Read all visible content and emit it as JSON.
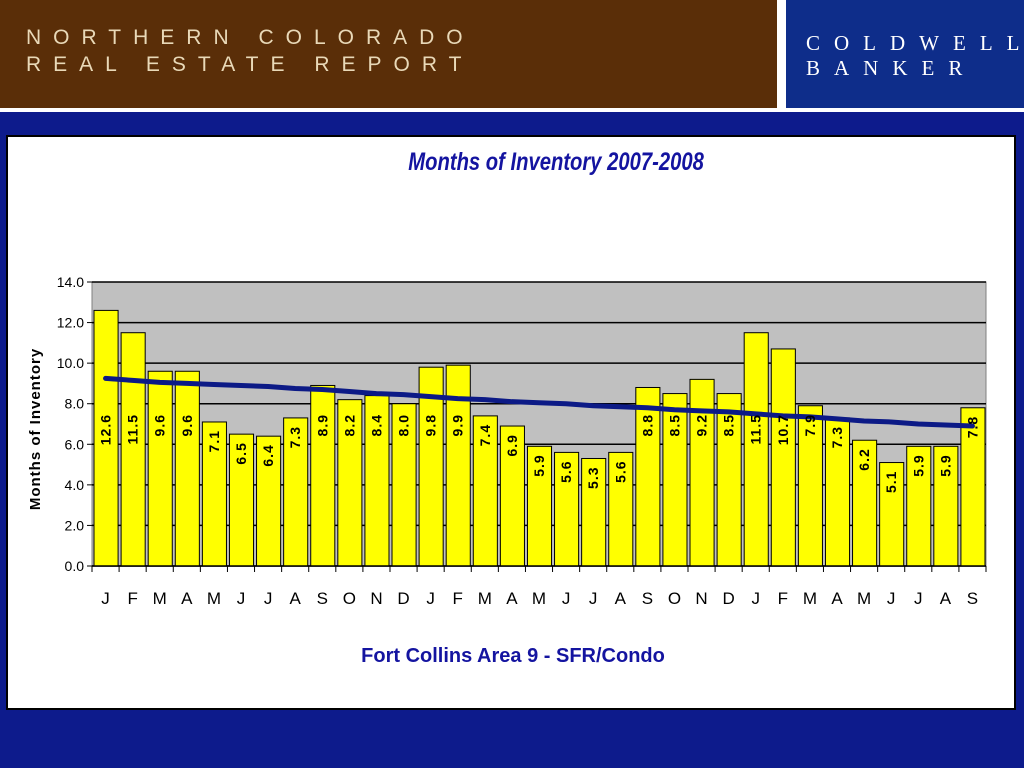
{
  "header": {
    "report_line1": "NORTHERN COLORADO",
    "report_line2": "REAL ESTATE REPORT",
    "brand_line1": "COLDWELL",
    "brand_line2": "BANKER"
  },
  "colors": {
    "bar_fill": "#ffff00",
    "bar_stroke": "#000000",
    "trend_line": "#0c1a86",
    "plot_bg": "#c0c0c0",
    "title": "#1414a0"
  },
  "chart_data": {
    "type": "bar",
    "title": "Months of Inventory  2007-2008",
    "ylabel": "Months of Inventory",
    "xlabel": "",
    "ylim": [
      0,
      14
    ],
    "yticks": [
      "0.0",
      "2.0",
      "4.0",
      "6.0",
      "8.0",
      "10.0",
      "12.0",
      "14.0"
    ],
    "grid": true,
    "categories": [
      "J",
      "F",
      "M",
      "A",
      "M",
      "J",
      "J",
      "A",
      "S",
      "O",
      "N",
      "D",
      "J",
      "F",
      "M",
      "A",
      "M",
      "J",
      "J",
      "A",
      "S",
      "O",
      "N",
      "D",
      "J",
      "F",
      "M",
      "A",
      "M",
      "J",
      "J",
      "A",
      "S"
    ],
    "series": [
      {
        "type": "bar",
        "values": [
          12.6,
          11.5,
          9.6,
          9.6,
          7.1,
          6.5,
          6.4,
          7.3,
          8.9,
          8.2,
          8.4,
          8.0,
          9.8,
          9.9,
          7.4,
          6.9,
          5.9,
          5.6,
          5.3,
          5.6,
          8.8,
          8.5,
          9.2,
          8.5,
          11.5,
          10.7,
          7.9,
          7.3,
          6.2,
          5.1,
          5.9,
          5.9,
          7.8
        ],
        "labels": [
          "12.6",
          "11.5",
          "9.6",
          "9.6",
          "7.1",
          "6.5",
          "6.4",
          "7.3",
          "8.9",
          "8.2",
          "8.4",
          "8.0",
          "9.8",
          "9.9",
          "7.4",
          "6.9",
          "5.9",
          "5.6",
          "5.3",
          "5.6",
          "8.8",
          "8.5",
          "9.2",
          "8.5",
          "11.5",
          "10.7",
          "7.9",
          "7.3",
          "6.2",
          "5.1",
          "5.9",
          "5.9",
          "7.8"
        ]
      },
      {
        "type": "line",
        "values": [
          9.25,
          9.15,
          9.05,
          9.0,
          8.95,
          8.9,
          8.85,
          8.75,
          8.7,
          8.6,
          8.5,
          8.45,
          8.35,
          8.25,
          8.2,
          8.1,
          8.05,
          8.0,
          7.9,
          7.85,
          7.8,
          7.7,
          7.65,
          7.6,
          7.5,
          7.4,
          7.35,
          7.25,
          7.15,
          7.1,
          7.0,
          6.95,
          6.9
        ]
      }
    ],
    "caption": "Fort Collins Area 9 - SFR/Condo"
  }
}
